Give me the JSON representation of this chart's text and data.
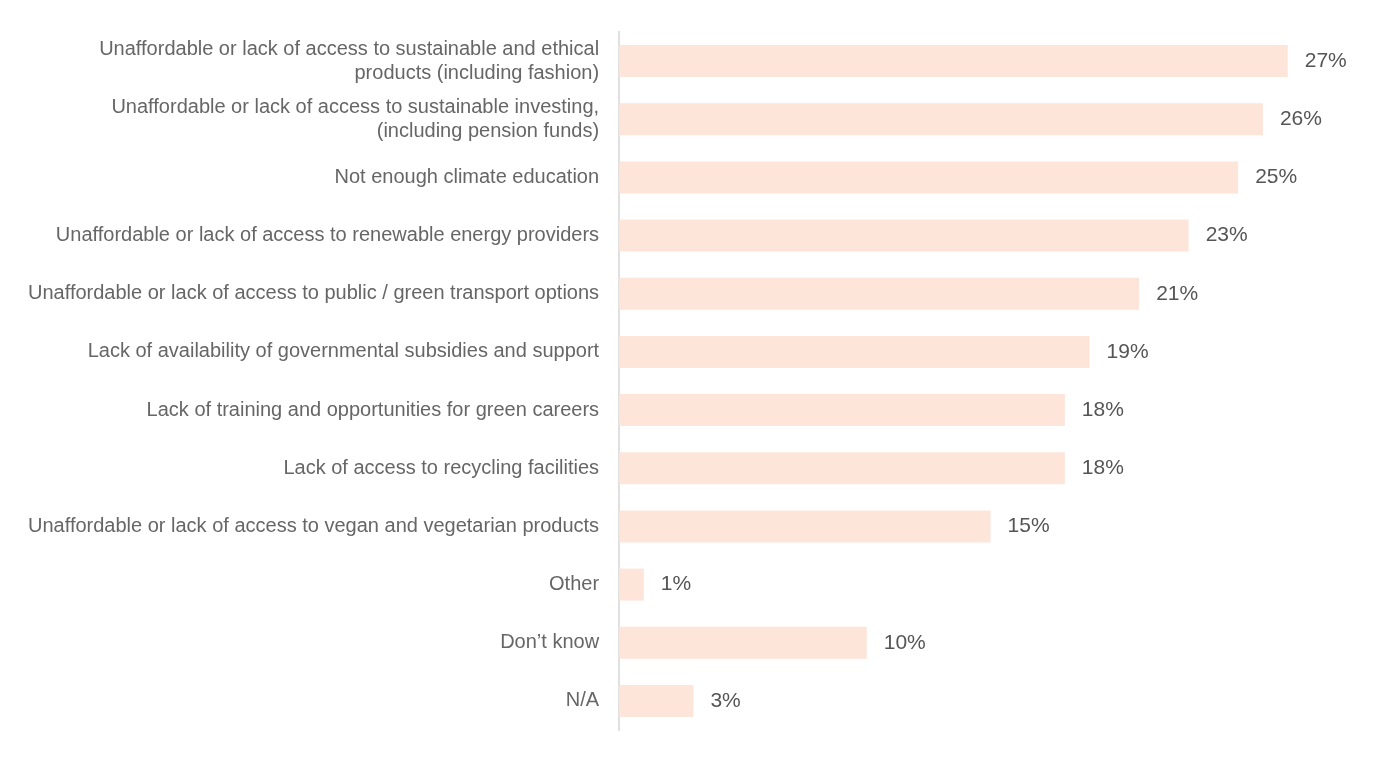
{
  "chart_data": {
    "type": "bar",
    "orientation": "horizontal",
    "categories": [
      "Unaffordable or lack of access to sustainable and ethical products (including fashion)",
      "Unaffordable or lack of access to sustainable investing, (including pension funds)",
      "Not enough climate education",
      "Unaffordable or lack of access to renewable energy providers",
      "Unaffordable or lack of access to public / green transport options",
      "Lack of availability of governmental subsidies and support",
      "Lack of training and opportunities for green careers",
      "Lack of access to recycling facilities",
      "Unaffordable or lack of access to vegan and vegetarian products",
      "Other",
      "Don’t know",
      "N/A"
    ],
    "values": [
      27,
      26,
      25,
      23,
      21,
      19,
      18,
      18,
      15,
      1,
      10,
      3
    ],
    "value_labels": [
      "27%",
      "26%",
      "25%",
      "23%",
      "21%",
      "19%",
      "18%",
      "18%",
      "15%",
      "1%",
      "10%",
      "3%"
    ],
    "color": "#fde5da"
  }
}
